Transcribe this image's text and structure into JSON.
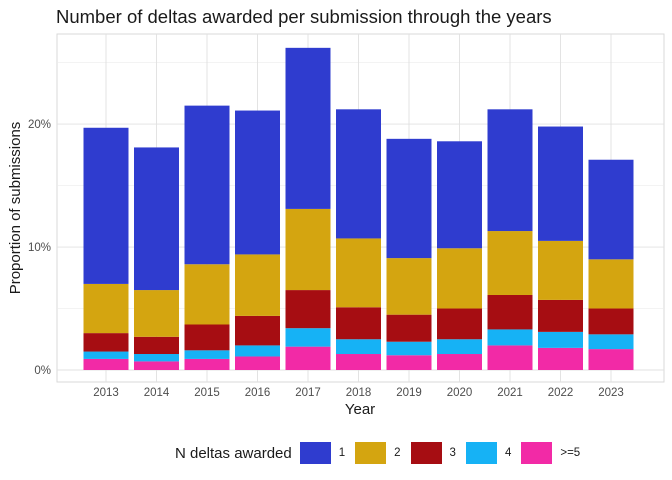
{
  "chart_data": {
    "type": "bar",
    "stacked": true,
    "title": "Number of deltas awarded per submission through the years",
    "xlabel": "Year",
    "ylabel": "Proportion of submissions",
    "categories": [
      "2013",
      "2014",
      "2015",
      "2016",
      "2017",
      "2018",
      "2019",
      "2020",
      "2021",
      "2022",
      "2023"
    ],
    "ylim": [
      0,
      0.27
    ],
    "yticks": [
      0,
      0.1,
      0.2
    ],
    "ytick_labels": [
      "0%",
      "10%",
      "20%"
    ],
    "grid": true,
    "legend_title": "N deltas awarded",
    "legend_position": "bottom",
    "series": [
      {
        "name": ">=5",
        "color": "#f22aa6",
        "values": [
          0.009,
          0.007,
          0.009,
          0.011,
          0.019,
          0.013,
          0.012,
          0.013,
          0.02,
          0.018,
          0.017
        ]
      },
      {
        "name": "4",
        "color": "#16b2f5",
        "values": [
          0.006,
          0.006,
          0.007,
          0.009,
          0.015,
          0.012,
          0.011,
          0.012,
          0.013,
          0.013,
          0.012
        ]
      },
      {
        "name": "3",
        "color": "#a60d12",
        "values": [
          0.015,
          0.014,
          0.021,
          0.024,
          0.031,
          0.026,
          0.022,
          0.025,
          0.028,
          0.026,
          0.021
        ]
      },
      {
        "name": "2",
        "color": "#d4a510",
        "values": [
          0.04,
          0.038,
          0.049,
          0.05,
          0.066,
          0.056,
          0.046,
          0.049,
          0.052,
          0.048,
          0.04
        ]
      },
      {
        "name": "1",
        "color": "#2f3ccf",
        "values": [
          0.127,
          0.116,
          0.129,
          0.117,
          0.131,
          0.105,
          0.097,
          0.087,
          0.099,
          0.093,
          0.081
        ]
      }
    ],
    "legend_order": [
      "1",
      "2",
      "3",
      "4",
      ">=5"
    ]
  }
}
